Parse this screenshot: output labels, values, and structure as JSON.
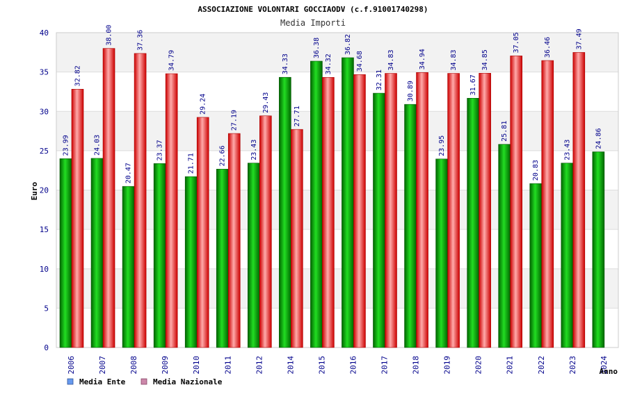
{
  "chart_data": {
    "type": "bar",
    "title": "ASSOCIAZIONE VOLONTARI GOCCIAODV (c.f.91001740298)",
    "subtitle": "Media Importi",
    "xlabel": "Anno",
    "ylabel": "Euro",
    "ylim": [
      0,
      40
    ],
    "yticks": [
      0,
      5,
      10,
      15,
      20,
      25,
      30,
      35,
      40
    ],
    "grid": true,
    "legend_position": "bottom-left",
    "categories": [
      "2006",
      "2007",
      "2008",
      "2009",
      "2010",
      "2011",
      "2012",
      "2014",
      "2015",
      "2016",
      "2017",
      "2018",
      "2019",
      "2020",
      "2021",
      "2022",
      "2023",
      "2024"
    ],
    "series": [
      {
        "name": "Media Ente",
        "color": "#00aa00",
        "legend_color": "#6699ee",
        "values": [
          23.99,
          24.03,
          20.47,
          23.37,
          21.71,
          22.66,
          23.43,
          34.33,
          36.38,
          36.82,
          32.31,
          30.89,
          23.95,
          31.67,
          25.81,
          20.83,
          23.43,
          24.86
        ],
        "labels": [
          "23.99",
          "24.03",
          "20.47",
          "23.37",
          "21.71",
          "22.66",
          "23.43",
          "34.33",
          "36.38",
          "36.82",
          "32.31",
          "30.89",
          "23.95",
          "31.67",
          "25.81",
          "20.83",
          "23.43",
          "24.86"
        ]
      },
      {
        "name": "Media Nazionale",
        "color": "#ee2222",
        "legend_color": "#cc88aa",
        "values": [
          32.82,
          38.0,
          37.36,
          34.79,
          29.24,
          27.19,
          29.43,
          27.71,
          34.32,
          34.68,
          34.83,
          34.94,
          34.83,
          34.85,
          37.05,
          36.46,
          37.49,
          null
        ],
        "labels": [
          "32.82",
          "38.00",
          "37.36",
          "34.79",
          "29.24",
          "27.19",
          "29.43",
          "27.71",
          "34.32",
          "34.68",
          "34.83",
          "34.94",
          "34.83",
          "34.85",
          "37.05",
          "36.46",
          "37.49",
          null
        ]
      }
    ]
  }
}
